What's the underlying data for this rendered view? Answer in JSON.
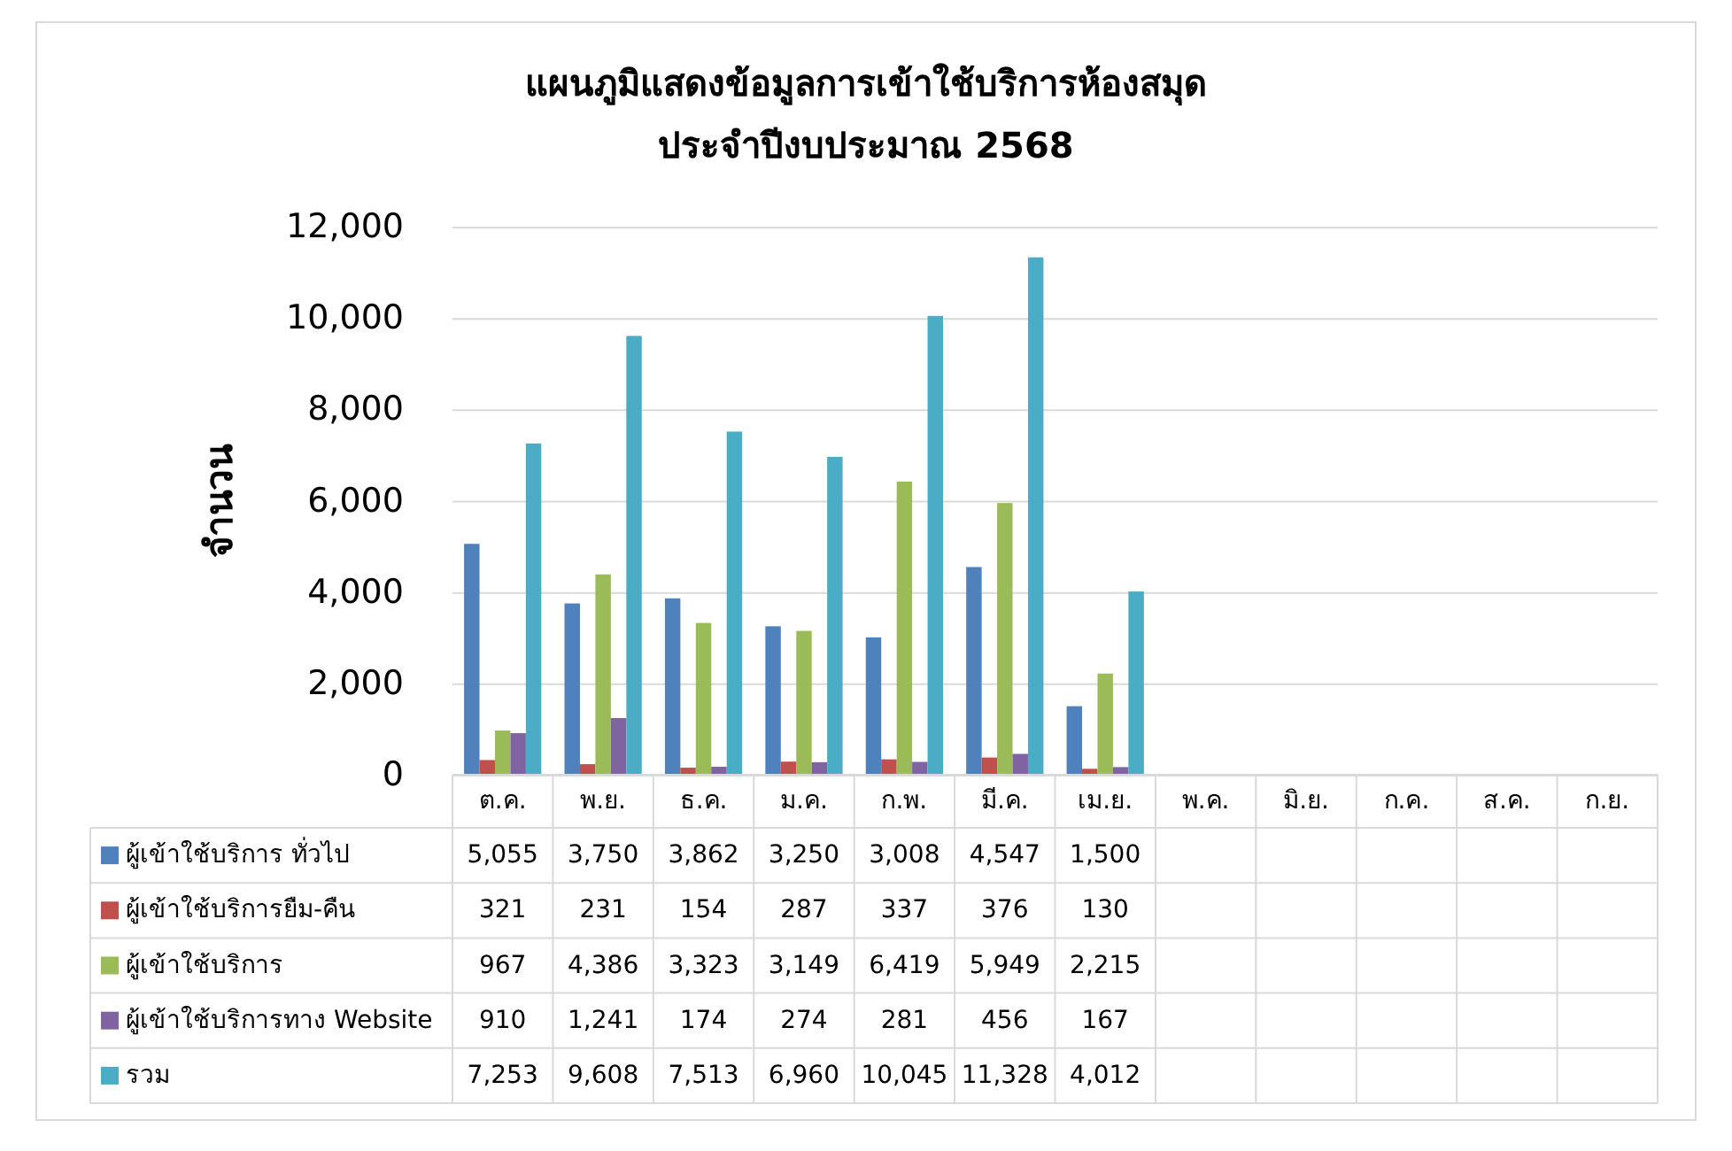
{
  "chart_data": {
    "type": "bar",
    "title": "แผนภูมิแสดงข้อมูลการเข้าใช้บริการห้องสมุด\nประจำปีงบประมาณ 2568",
    "ylabel": "จำนวน",
    "categories": [
      "ต.ค.",
      "พ.ย.",
      "ธ.ค.",
      "ม.ค.",
      "ก.พ.",
      "มี.ค.",
      "เม.ย.",
      "พ.ค.",
      "มิ.ย.",
      "ก.ค.",
      "ส.ค.",
      "ก.ย."
    ],
    "series": [
      {
        "name": "ผู้เข้าใช้บริการ ทั่วไป",
        "color": "#4f81bd",
        "values": [
          5055,
          3750,
          3862,
          3250,
          3008,
          4547,
          1500,
          null,
          null,
          null,
          null,
          null
        ],
        "value_labels": [
          "5,055",
          "3,750",
          "3,862",
          "3,250",
          "3,008",
          "4,547",
          "1,500",
          null,
          null,
          null,
          null,
          null
        ]
      },
      {
        "name": "ผู้เข้าใช้บริการยืม-คืน",
        "color": "#c0504d",
        "values": [
          321,
          231,
          154,
          287,
          337,
          376,
          130,
          null,
          null,
          null,
          null,
          null
        ],
        "value_labels": [
          "321",
          "231",
          "154",
          "287",
          "337",
          "376",
          "130",
          null,
          null,
          null,
          null,
          null
        ]
      },
      {
        "name": "ผู้เข้าใช้บริการ",
        "color": "#9bbb59",
        "values": [
          967,
          4386,
          3323,
          3149,
          6419,
          5949,
          2215,
          null,
          null,
          null,
          null,
          null
        ],
        "value_labels": [
          "967",
          "4,386",
          "3,323",
          "3,149",
          "6,419",
          "5,949",
          "2,215",
          null,
          null,
          null,
          null,
          null
        ]
      },
      {
        "name": "ผู้เข้าใช้บริการทาง Website",
        "color": "#8064a2",
        "values": [
          910,
          1241,
          174,
          274,
          281,
          456,
          167,
          null,
          null,
          null,
          null,
          null
        ],
        "value_labels": [
          "910",
          "1,241",
          "174",
          "274",
          "281",
          "456",
          "167",
          null,
          null,
          null,
          null,
          null
        ]
      },
      {
        "name": "รวม",
        "color": "#4bacc6",
        "values": [
          7253,
          9608,
          7513,
          6960,
          10045,
          11328,
          4012,
          null,
          null,
          null,
          null,
          null
        ],
        "value_labels": [
          "7,253",
          "9,608",
          "7,513",
          "6,960",
          "10,045",
          "11,328",
          "4,012",
          null,
          null,
          null,
          null,
          null
        ]
      }
    ],
    "ylim": [
      0,
      12000
    ],
    "yticks": [
      0,
      {
        "value": 2000,
        "label": "2,000"
      },
      {
        "value": 4000,
        "label": "4,000"
      },
      {
        "value": 6000,
        "label": "6,000"
      },
      {
        "value": 8000,
        "label": "8,000"
      },
      {
        "value": 10000,
        "label": "10,000"
      },
      {
        "value": 12000,
        "label": "12,000"
      }
    ],
    "grid": "y",
    "legend": "bottom"
  }
}
